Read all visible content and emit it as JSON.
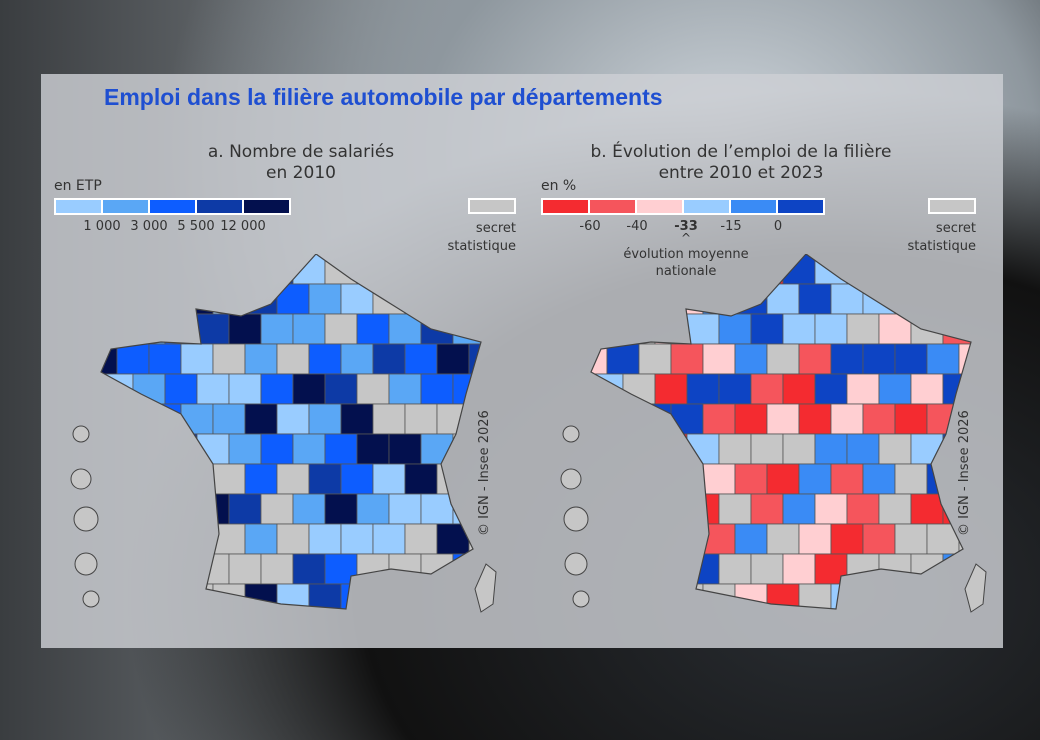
{
  "title": "Emploi dans la filière automobile par départements",
  "map_a": {
    "title_l1": "a. Nombre de salariés",
    "title_l2": "en 2010",
    "unit": "en ETP",
    "breaks": [
      "1 000",
      "3 000",
      "5 500",
      "12 000"
    ],
    "colors": [
      "#99ccff",
      "#5aa7f5",
      "#0d5dff",
      "#0d3aa6",
      "#03104e"
    ],
    "secret_l1": "secret",
    "secret_l2": "statistique",
    "secret_color": "#c6c6c6"
  },
  "map_b": {
    "title_l1": "b. Évolution de l’emploi de la filière",
    "title_l2": "entre 2010 et 2023",
    "unit": "en %",
    "breaks": [
      "-60",
      "-40",
      "-33",
      "-15",
      "0"
    ],
    "average_note_l1": "évolution moyenne",
    "average_note_l2": "nationale",
    "colors": [
      "#f42b30",
      "#f5555c",
      "#ffcfd2",
      "#99ccff",
      "#3a8bf5",
      "#0d44c4"
    ],
    "secret_l1": "secret",
    "secret_l2": "statistique",
    "secret_color": "#c6c6c6"
  },
  "copyright": "© IGN - Insee 2026"
}
